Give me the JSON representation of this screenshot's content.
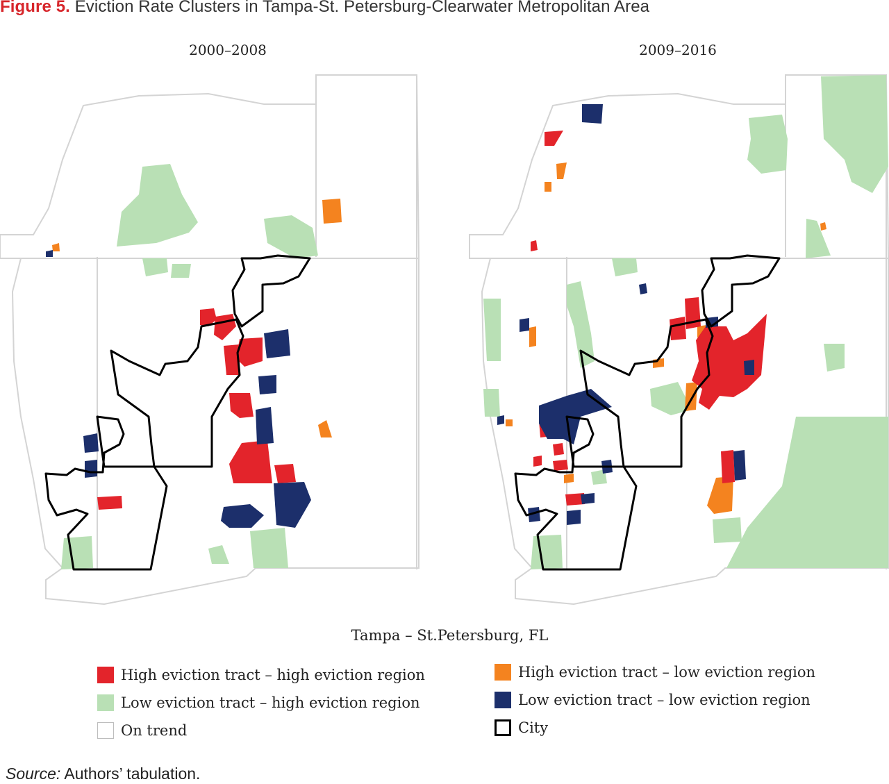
{
  "figure": {
    "label": "Figure 5.",
    "title": "Eviction Rate Clusters in Tampa-St. Petersburg-Clearwater Metropolitan Area"
  },
  "panels": [
    {
      "period": "2000–2008"
    },
    {
      "period": "2009–2016"
    }
  ],
  "region_caption": "Tampa – St.Petersburg, FL",
  "legend": {
    "high_high": "High eviction tract – high eviction region",
    "low_high": "Low eviction tract – high eviction region",
    "on_trend": "On trend",
    "high_low": "High eviction tract – low eviction region",
    "low_low": "Low eviction tract – low eviction region",
    "city": "City"
  },
  "colors": {
    "high_high": "#e3242b",
    "low_high": "#b9e0b5",
    "on_trend": "#ffffff",
    "high_low": "#f4831f",
    "low_low": "#1c2f6b",
    "tract_border": "#d4d4d4",
    "city_border": "#000000"
  },
  "source": {
    "label": "Source:",
    "text": "Authors’ tabulation."
  }
}
